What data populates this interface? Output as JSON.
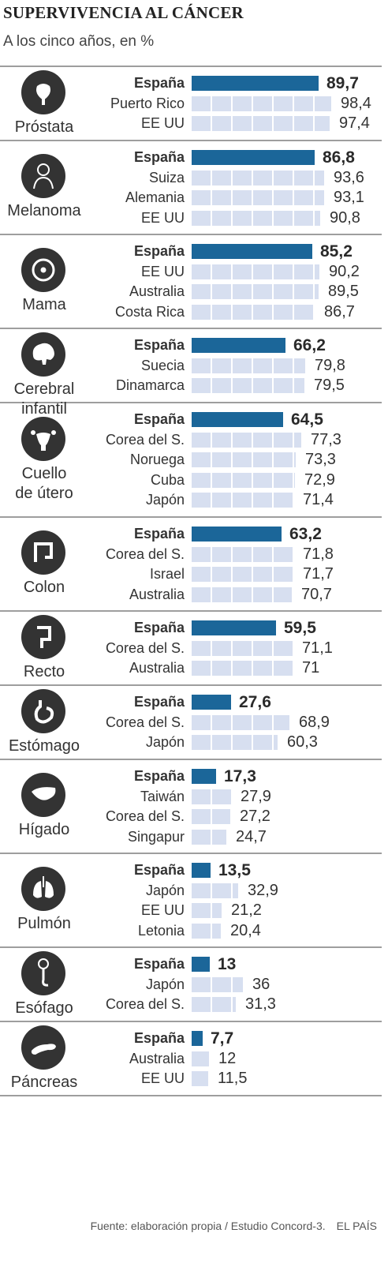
{
  "header": {
    "title": "SUPERVIVENCIA AL CÁNCER",
    "subtitle": "A los cinco años, en %"
  },
  "footer": {
    "source": "Fuente: elaboración propia / Estudio Concord-3.",
    "brand": "EL PAÍS"
  },
  "colors": {
    "spain_bar": "#1b6699",
    "other_bar": "#d7dff0",
    "divider": "#9e9e9e"
  },
  "chart_data": {
    "type": "bar",
    "orientation": "horizontal",
    "title": "SUPERVIVENCIA AL CÁNCER",
    "subtitle": "A los cinco años, en %",
    "xlim": [
      0,
      100
    ],
    "grid": false,
    "groups": [
      {
        "label": [
          "Próstata"
        ],
        "icon": "prostate-icon",
        "rows": [
          {
            "country": "España",
            "value": 89.7,
            "label": "89,7"
          },
          {
            "country": "Puerto Rico",
            "value": 98.4,
            "label": "98,4"
          },
          {
            "country": "EE UU",
            "value": 97.4,
            "label": "97,4"
          }
        ]
      },
      {
        "label": [
          "Melanoma"
        ],
        "icon": "person-silhouette-icon",
        "rows": [
          {
            "country": "España",
            "value": 86.8,
            "label": "86,8"
          },
          {
            "country": "Suiza",
            "value": 93.6,
            "label": "93,6"
          },
          {
            "country": "Alemania",
            "value": 93.1,
            "label": "93,1"
          },
          {
            "country": "EE UU",
            "value": 90.8,
            "label": "90,8"
          }
        ]
      },
      {
        "label": [
          "Mama"
        ],
        "icon": "breast-icon",
        "rows": [
          {
            "country": "España",
            "value": 85.2,
            "label": "85,2"
          },
          {
            "country": "EE UU",
            "value": 90.2,
            "label": "90,2"
          },
          {
            "country": "Australia",
            "value": 89.5,
            "label": "89,5"
          },
          {
            "country": "Costa Rica",
            "value": 86.7,
            "label": "86,7"
          }
        ]
      },
      {
        "label": [
          "Cerebral",
          "infantil"
        ],
        "icon": "brain-icon",
        "rows": [
          {
            "country": "España",
            "value": 66.2,
            "label": "66,2"
          },
          {
            "country": "Suecia",
            "value": 79.8,
            "label": "79,8"
          },
          {
            "country": "Dinamarca",
            "value": 79.5,
            "label": "79,5"
          }
        ]
      },
      {
        "label": [
          "Cuello",
          "de útero"
        ],
        "icon": "uterus-icon",
        "rows": [
          {
            "country": "España",
            "value": 64.5,
            "label": "64,5"
          },
          {
            "country": "Corea del S.",
            "value": 77.3,
            "label": "77,3"
          },
          {
            "country": "Noruega",
            "value": 73.3,
            "label": "73,3"
          },
          {
            "country": "Cuba",
            "value": 72.9,
            "label": "72,9"
          },
          {
            "country": "Japón",
            "value": 71.4,
            "label": "71,4"
          }
        ]
      },
      {
        "label": [
          "Colon"
        ],
        "icon": "colon-icon",
        "rows": [
          {
            "country": "España",
            "value": 63.2,
            "label": "63,2"
          },
          {
            "country": "Corea del S.",
            "value": 71.8,
            "label": "71,8"
          },
          {
            "country": "Israel",
            "value": 71.7,
            "label": "71,7"
          },
          {
            "country": "Australia",
            "value": 70.7,
            "label": "70,7"
          }
        ]
      },
      {
        "label": [
          "Recto"
        ],
        "icon": "rectum-icon",
        "rows": [
          {
            "country": "España",
            "value": 59.5,
            "label": "59,5"
          },
          {
            "country": "Corea del S.",
            "value": 71.1,
            "label": "71,1"
          },
          {
            "country": "Australia",
            "value": 71,
            "label": "71"
          }
        ]
      },
      {
        "label": [
          "Estómago"
        ],
        "icon": "stomach-icon",
        "rows": [
          {
            "country": "España",
            "value": 27.6,
            "label": "27,6"
          },
          {
            "country": "Corea del S.",
            "value": 68.9,
            "label": "68,9"
          },
          {
            "country": "Japón",
            "value": 60.3,
            "label": "60,3"
          }
        ]
      },
      {
        "label": [
          "Hígado"
        ],
        "icon": "liver-icon",
        "rows": [
          {
            "country": "España",
            "value": 17.3,
            "label": "17,3"
          },
          {
            "country": "Taiwán",
            "value": 27.9,
            "label": "27,9"
          },
          {
            "country": "Corea del S.",
            "value": 27.2,
            "label": "27,2"
          },
          {
            "country": "Singapur",
            "value": 24.7,
            "label": "24,7"
          }
        ]
      },
      {
        "label": [
          "Pulmón"
        ],
        "icon": "lungs-icon",
        "rows": [
          {
            "country": "España",
            "value": 13.5,
            "label": "13,5"
          },
          {
            "country": "Japón",
            "value": 32.9,
            "label": "32,9"
          },
          {
            "country": "EE UU",
            "value": 21.2,
            "label": "21,2"
          },
          {
            "country": "Letonia",
            "value": 20.4,
            "label": "20,4"
          }
        ]
      },
      {
        "label": [
          "Esófago"
        ],
        "icon": "esophagus-icon",
        "rows": [
          {
            "country": "España",
            "value": 13,
            "label": "13"
          },
          {
            "country": "Japón",
            "value": 36,
            "label": "36"
          },
          {
            "country": "Corea del S.",
            "value": 31.3,
            "label": "31,3"
          }
        ]
      },
      {
        "label": [
          "Páncreas"
        ],
        "icon": "pancreas-icon",
        "rows": [
          {
            "country": "España",
            "value": 7.7,
            "label": "7,7"
          },
          {
            "country": "Australia",
            "value": 12,
            "label": "12"
          },
          {
            "country": "EE UU",
            "value": 11.5,
            "label": "11,5"
          }
        ]
      }
    ]
  }
}
